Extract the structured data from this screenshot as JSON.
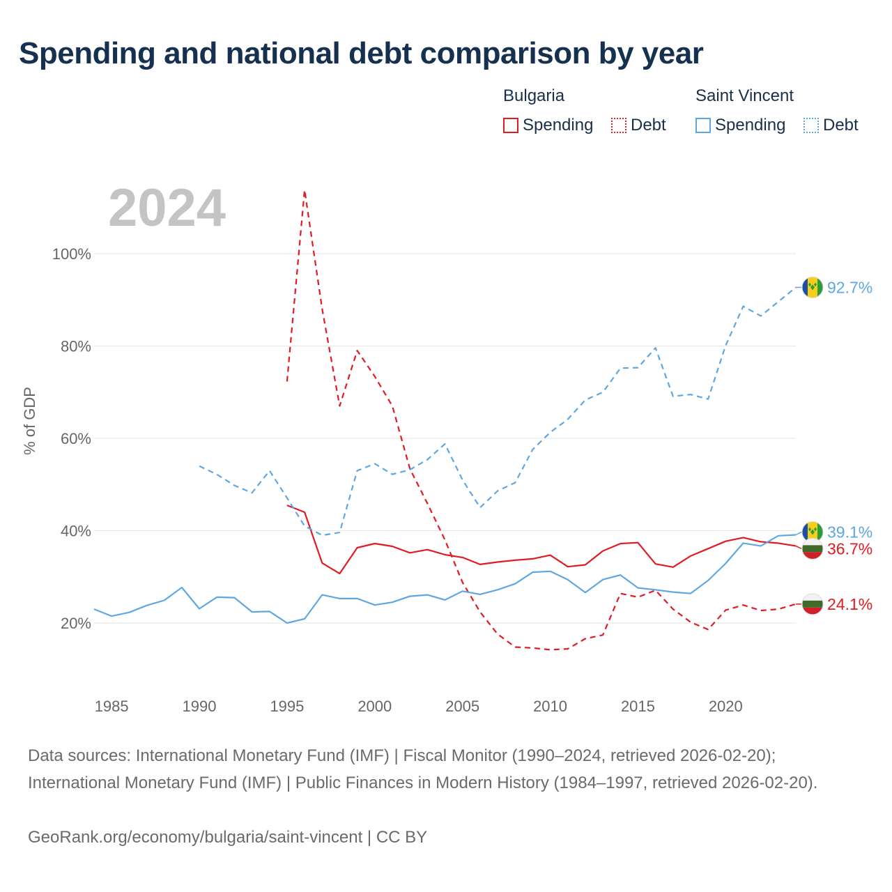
{
  "title": "Spending and national debt comparison by year",
  "year_watermark": "2024",
  "legend": {
    "groups": [
      {
        "country": "Bulgaria",
        "items": [
          "Spending",
          "Debt"
        ],
        "color": "#e11b22"
      },
      {
        "country": "Saint Vincent",
        "items": [
          "Spending",
          "Debt"
        ],
        "color": "#5ea7e2"
      }
    ]
  },
  "end_labels": {
    "vc_debt": "92.7%",
    "vc_spending": "39.1%",
    "bg_spending": "36.7%",
    "bg_debt": "24.1%"
  },
  "footer": {
    "sources": "Data sources: International Monetary Fund (IMF) | Fiscal Monitor (1990–2024, retrieved 2026-02-20); International Monetary Fund (IMF) | Public Finances in Modern History (1984–1997, retrieved 2026-02-20).",
    "attribution": "GeoRank.org/economy/bulgaria/saint-vincent | CC BY"
  },
  "chart_data": {
    "type": "line",
    "title": "Spending and national debt comparison by year",
    "xlabel": "",
    "ylabel": "% of GDP",
    "xlim": [
      1984,
      2024
    ],
    "ylim": [
      7,
      115
    ],
    "xticks": [
      1985,
      1990,
      1995,
      2000,
      2005,
      2010,
      2015,
      2020
    ],
    "yticks": [
      20,
      40,
      60,
      80,
      100
    ],
    "ytick_labels": [
      "20%",
      "40%",
      "60%",
      "80%",
      "100%"
    ],
    "grid": true,
    "series": [
      {
        "name": "Bulgaria Spending",
        "country": "Bulgaria",
        "metric": "Spending",
        "color": "#e11b22",
        "style": "solid",
        "x": [
          1995,
          1996,
          1997,
          1998,
          1999,
          2000,
          2001,
          2002,
          2003,
          2004,
          2005,
          2006,
          2007,
          2008,
          2009,
          2010,
          2011,
          2012,
          2013,
          2014,
          2015,
          2016,
          2017,
          2018,
          2019,
          2020,
          2021,
          2022,
          2023,
          2024
        ],
        "values": [
          45.5,
          44.0,
          33.0,
          30.7,
          36.3,
          37.2,
          36.6,
          35.2,
          35.9,
          34.8,
          34.2,
          32.7,
          33.2,
          33.6,
          33.9,
          34.7,
          32.2,
          32.6,
          35.6,
          37.2,
          37.4,
          32.8,
          32.1,
          34.5,
          36.1,
          37.7,
          38.5,
          37.6,
          37.3,
          36.7
        ]
      },
      {
        "name": "Bulgaria Debt",
        "country": "Bulgaria",
        "metric": "Debt",
        "color": "#e11b22",
        "style": "dashed",
        "x": [
          1995,
          1996,
          1997,
          1998,
          1999,
          2000,
          2001,
          2002,
          2003,
          2004,
          2005,
          2006,
          2007,
          2008,
          2009,
          2010,
          2011,
          2012,
          2013,
          2014,
          2015,
          2016,
          2017,
          2018,
          2019,
          2020,
          2021,
          2022,
          2023,
          2024
        ],
        "values": [
          72.3,
          113.8,
          88.0,
          67.0,
          79.0,
          73.4,
          67.0,
          53.4,
          45.9,
          38.0,
          28.8,
          22.4,
          17.6,
          14.8,
          14.6,
          14.2,
          14.4,
          16.6,
          17.4,
          26.4,
          25.6,
          27.1,
          23.0,
          20.2,
          18.6,
          22.8,
          23.9,
          22.7,
          23.0,
          24.1
        ]
      },
      {
        "name": "Saint Vincent Spending",
        "country": "Saint Vincent",
        "metric": "Spending",
        "color": "#5ea7e2",
        "style": "solid",
        "x": [
          1984,
          1985,
          1986,
          1987,
          1988,
          1989,
          1990,
          1991,
          1992,
          1993,
          1994,
          1995,
          1996,
          1997,
          1998,
          1999,
          2000,
          2001,
          2002,
          2003,
          2004,
          2005,
          2006,
          2007,
          2008,
          2009,
          2010,
          2011,
          2012,
          2013,
          2014,
          2015,
          2016,
          2017,
          2018,
          2019,
          2020,
          2021,
          2022,
          2023,
          2024
        ],
        "values": [
          23.0,
          21.5,
          22.3,
          23.8,
          24.9,
          27.7,
          23.1,
          25.6,
          25.5,
          22.4,
          22.5,
          20.0,
          20.9,
          26.1,
          25.3,
          25.3,
          23.9,
          24.5,
          25.8,
          26.1,
          25.0,
          26.9,
          26.2,
          27.2,
          28.5,
          31.0,
          31.2,
          29.4,
          26.6,
          29.4,
          30.4,
          27.6,
          27.2,
          26.7,
          26.4,
          29.2,
          32.9,
          37.3,
          36.7,
          38.9,
          39.1
        ]
      },
      {
        "name": "Saint Vincent Debt",
        "country": "Saint Vincent",
        "metric": "Debt",
        "color": "#5ea7e2",
        "style": "dashed",
        "x": [
          1990,
          1991,
          1992,
          1993,
          1994,
          1995,
          1996,
          1997,
          1998,
          1999,
          2000,
          2001,
          2002,
          2003,
          2004,
          2005,
          2006,
          2007,
          2008,
          2009,
          2010,
          2011,
          2012,
          2013,
          2014,
          2015,
          2016,
          2017,
          2018,
          2019,
          2020,
          2021,
          2022,
          2023,
          2024
        ],
        "values": [
          54.0,
          52.2,
          49.8,
          48.2,
          53.0,
          47.1,
          41.0,
          39.0,
          39.6,
          53.0,
          54.5,
          52.2,
          53.2,
          55.4,
          58.8,
          51.0,
          45.0,
          48.6,
          50.4,
          57.6,
          61.3,
          64.1,
          68.3,
          70.0,
          75.2,
          75.3,
          79.6,
          69.1,
          69.5,
          68.5,
          80.1,
          88.6,
          86.5,
          89.6,
          92.7
        ]
      }
    ]
  }
}
